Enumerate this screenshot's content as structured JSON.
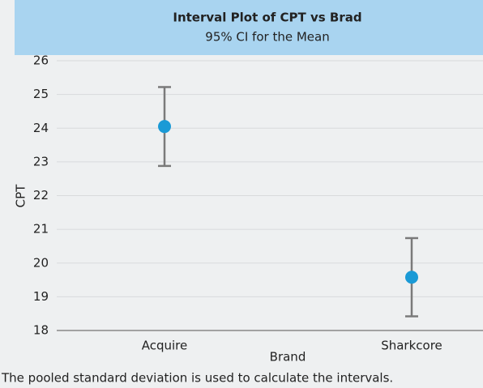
{
  "chart_data": {
    "type": "interval",
    "title": "Interval Plot of CPT vs Brad",
    "subtitle": "95% CI for the Mean",
    "x_label": "Brand",
    "y_label": "CPT",
    "categories": [
      "Acquire",
      "Sharkcore"
    ],
    "values": [
      24.05,
      19.58
    ],
    "errors": [
      1.17,
      1.16
    ],
    "color": "#1a9ad6",
    "error_color": "#7a7a7a",
    "ylim": [
      18,
      26
    ],
    "yticks": [
      18,
      19,
      20,
      21,
      22,
      23,
      24,
      25,
      26
    ],
    "grid": true,
    "note": "The pooled standard deviation is used to calculate the intervals."
  }
}
